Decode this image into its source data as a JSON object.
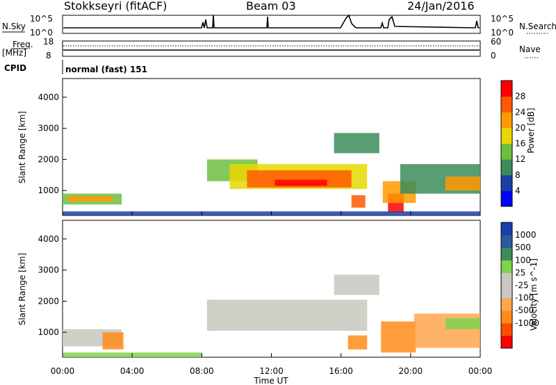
{
  "header": {
    "station": "Stokkseyri (fitACF)",
    "beam": "Beam 03",
    "date": "24/Jan/2016"
  },
  "status_panels": {
    "nsky_label": "N.Sky",
    "nsky_ticks": [
      "10^5",
      "10^0"
    ],
    "nsearch_label": "N.Search",
    "nsearch_ticks": [
      "10^5",
      "10^0"
    ],
    "freq_label": "Freq.",
    "freq_unit": "[MHz]",
    "freq_ticks": [
      "18",
      "8"
    ],
    "nave_label": "Nave",
    "nave_ticks": [
      "60",
      "0"
    ],
    "cpid_label": "CPID",
    "cpid_value": "normal (fast) 151"
  },
  "colors": {
    "power_scale": [
      "#0000ff",
      "#1a3fa8",
      "#3c8c5a",
      "#6fbf3f",
      "#e8d800",
      "#ff9a00",
      "#ff5a00",
      "#ff0000"
    ],
    "velocity_scale": [
      "#ff0000",
      "#ff4d00",
      "#ff8c1a",
      "#ffa64d",
      "#c8c8c0",
      "#c8c8c0",
      "#7fd24d",
      "#3c8c5a",
      "#2a5a9c",
      "#1a3fa8"
    ]
  },
  "chart_data": [
    {
      "type": "heatmap",
      "title": "Power",
      "ylabel": "Slant Range [km]",
      "xlabel": "",
      "yticks": [
        "1000",
        "2000",
        "3000",
        "4000"
      ],
      "ylim": [
        200,
        4600
      ],
      "colorbar_label": "Power [dB]",
      "colorbar_ticks": [
        "4",
        "8",
        "12",
        "16",
        "20",
        "24",
        "28"
      ],
      "regions": [
        {
          "t0": 0.0,
          "t1": 3.4,
          "r0": 550,
          "r1": 900,
          "level": 3
        },
        {
          "t0": 0.3,
          "t1": 2.9,
          "r0": 650,
          "r1": 820,
          "level": 5
        },
        {
          "t0": 8.3,
          "t1": 11.2,
          "r0": 1300,
          "r1": 2000,
          "level": 3
        },
        {
          "t0": 9.6,
          "t1": 17.5,
          "r0": 1050,
          "r1": 1850,
          "level": 4
        },
        {
          "t0": 10.6,
          "t1": 16.6,
          "r0": 1100,
          "r1": 1650,
          "level": 6
        },
        {
          "t0": 12.2,
          "t1": 15.2,
          "r0": 1150,
          "r1": 1350,
          "level": 7
        },
        {
          "t0": 15.6,
          "t1": 18.2,
          "r0": 2200,
          "r1": 2850,
          "level": 2
        },
        {
          "t0": 16.6,
          "t1": 17.4,
          "r0": 450,
          "r1": 850,
          "level": 6
        },
        {
          "t0": 18.7,
          "t1": 19.6,
          "r0": 300,
          "r1": 900,
          "level": 7
        },
        {
          "t0": 18.4,
          "t1": 20.3,
          "r0": 600,
          "r1": 1300,
          "level": 5
        },
        {
          "t0": 19.4,
          "t1": 24.0,
          "r0": 900,
          "r1": 1850,
          "level": 2
        },
        {
          "t0": 22.0,
          "t1": 24.0,
          "r0": 1000,
          "r1": 1450,
          "level": 5
        },
        {
          "t0": 0.0,
          "t1": 24.0,
          "r0": 200,
          "r1": 330,
          "level": 1
        }
      ]
    },
    {
      "type": "heatmap",
      "title": "Velocity",
      "ylabel": "Slant Range [km]",
      "xlabel": "Time UT",
      "xticks": [
        "00:00",
        "04:00",
        "08:00",
        "12:00",
        "16:00",
        "20:00",
        "00:00"
      ],
      "yticks": [
        "1000",
        "2000",
        "3000",
        "4000"
      ],
      "ylim": [
        200,
        4600
      ],
      "colorbar_label": "Velocity [m s^-1]",
      "colorbar_ticks": [
        "1000",
        "500",
        "100",
        "25",
        "-25",
        "-100",
        "-500",
        "-1000"
      ],
      "regions": [
        {
          "t0": 0.0,
          "t1": 3.4,
          "r0": 550,
          "r1": 1100,
          "level": 4
        },
        {
          "t0": 2.3,
          "t1": 3.5,
          "r0": 450,
          "r1": 1000,
          "level": 2
        },
        {
          "t0": 8.3,
          "t1": 17.5,
          "r0": 1050,
          "r1": 2050,
          "level": 4
        },
        {
          "t0": 15.6,
          "t1": 18.2,
          "r0": 2200,
          "r1": 2850,
          "level": 4
        },
        {
          "t0": 16.4,
          "t1": 17.5,
          "r0": 450,
          "r1": 900,
          "level": 2
        },
        {
          "t0": 18.3,
          "t1": 20.3,
          "r0": 350,
          "r1": 1350,
          "level": 2
        },
        {
          "t0": 20.2,
          "t1": 24.0,
          "r0": 500,
          "r1": 1600,
          "level": 3
        },
        {
          "t0": 22.0,
          "t1": 24.0,
          "r0": 1100,
          "r1": 1450,
          "level": 6
        },
        {
          "t0": 0.0,
          "t1": 8.0,
          "r0": 200,
          "r1": 350,
          "level": 6
        }
      ]
    }
  ]
}
